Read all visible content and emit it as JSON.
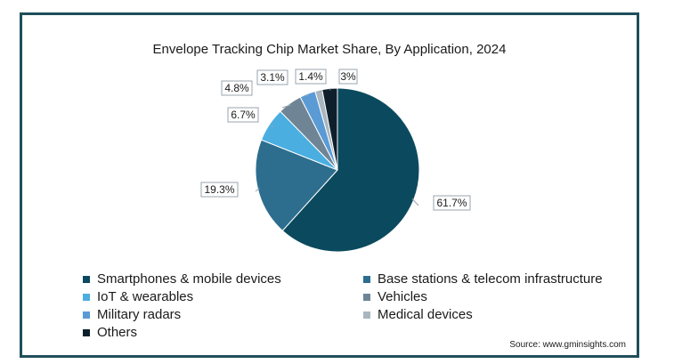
{
  "chart_data": {
    "type": "pie",
    "title": "Envelope Tracking Chip Market Share, By Application, 2024",
    "categories": [
      "Smartphones & mobile devices",
      "Base stations & telecom infrastructure",
      "IoT & wearables",
      "Vehicles",
      "Military radars",
      "Medical devices",
      "Others"
    ],
    "values": [
      61.7,
      19.3,
      6.7,
      4.8,
      3.1,
      1.4,
      3
    ],
    "value_labels": [
      "61.7%",
      "19.3%",
      "6.7%",
      "4.8%",
      "3.1%",
      "1.4%",
      "3%"
    ],
    "colors": [
      "#0b4a5e",
      "#2d6e8e",
      "#4aaee0",
      "#6f8595",
      "#5b9bd5",
      "#a9b6bf",
      "#0e1f2b"
    ],
    "legend_position": "bottom",
    "source": "Source: www.gminsights.com"
  }
}
